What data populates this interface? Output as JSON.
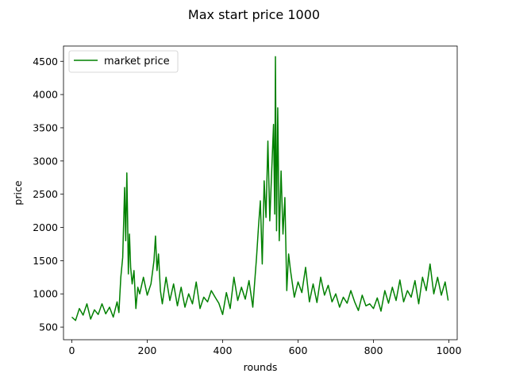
{
  "chart_data": {
    "type": "line",
    "title": "Max start price 1000",
    "xlabel": "rounds",
    "ylabel": "price",
    "xlim": [
      -22,
      1022
    ],
    "ylim": [
      310,
      4730
    ],
    "xticks": [
      0,
      200,
      400,
      600,
      800,
      1000
    ],
    "yticks": [
      500,
      1000,
      1500,
      2000,
      2500,
      3000,
      3500,
      4000,
      4500
    ],
    "grid": false,
    "legend": "upper-left",
    "series": [
      {
        "name": "market price",
        "color": "#008000",
        "x": [
          0,
          10,
          20,
          30,
          40,
          50,
          60,
          70,
          80,
          90,
          100,
          110,
          120,
          125,
          130,
          135,
          140,
          143,
          146,
          148,
          150,
          153,
          156,
          160,
          165,
          170,
          175,
          180,
          190,
          200,
          210,
          218,
          222,
          226,
          230,
          235,
          240,
          250,
          260,
          270,
          280,
          290,
          300,
          310,
          320,
          330,
          340,
          350,
          360,
          370,
          380,
          390,
          400,
          410,
          420,
          430,
          440,
          450,
          460,
          470,
          480,
          490,
          495,
          500,
          505,
          510,
          515,
          520,
          525,
          530,
          535,
          538,
          540,
          543,
          546,
          550,
          555,
          560,
          565,
          570,
          575,
          580,
          590,
          600,
          610,
          620,
          630,
          640,
          650,
          660,
          670,
          680,
          690,
          700,
          710,
          720,
          730,
          740,
          750,
          760,
          770,
          780,
          790,
          800,
          810,
          820,
          830,
          840,
          850,
          860,
          870,
          880,
          890,
          900,
          910,
          920,
          930,
          940,
          950,
          960,
          970,
          980,
          990,
          998
        ],
        "values": [
          650,
          600,
          780,
          680,
          850,
          620,
          760,
          690,
          850,
          700,
          800,
          650,
          880,
          720,
          1250,
          1550,
          2600,
          1800,
          2820,
          2100,
          1300,
          1900,
          1400,
          1150,
          1350,
          780,
          1100,
          1000,
          1250,
          980,
          1150,
          1500,
          1870,
          1350,
          1600,
          1050,
          850,
          1250,
          900,
          1150,
          820,
          1100,
          800,
          1000,
          850,
          1180,
          780,
          950,
          880,
          1050,
          950,
          860,
          690,
          1020,
          780,
          1250,
          900,
          1100,
          920,
          1200,
          800,
          1550,
          2000,
          2400,
          1450,
          2700,
          2150,
          3300,
          2100,
          2850,
          3550,
          2200,
          4570,
          1950,
          3800,
          1800,
          2850,
          1900,
          2450,
          1050,
          1600,
          1350,
          950,
          1180,
          1020,
          1400,
          880,
          1150,
          870,
          1250,
          980,
          1130,
          880,
          1000,
          800,
          950,
          860,
          1050,
          880,
          750,
          980,
          820,
          850,
          780,
          940,
          740,
          1050,
          860,
          1100,
          900,
          1210,
          880,
          1050,
          950,
          1200,
          850,
          1250,
          1050,
          1450,
          1000,
          1250,
          980,
          1180,
          900
        ]
      }
    ]
  }
}
